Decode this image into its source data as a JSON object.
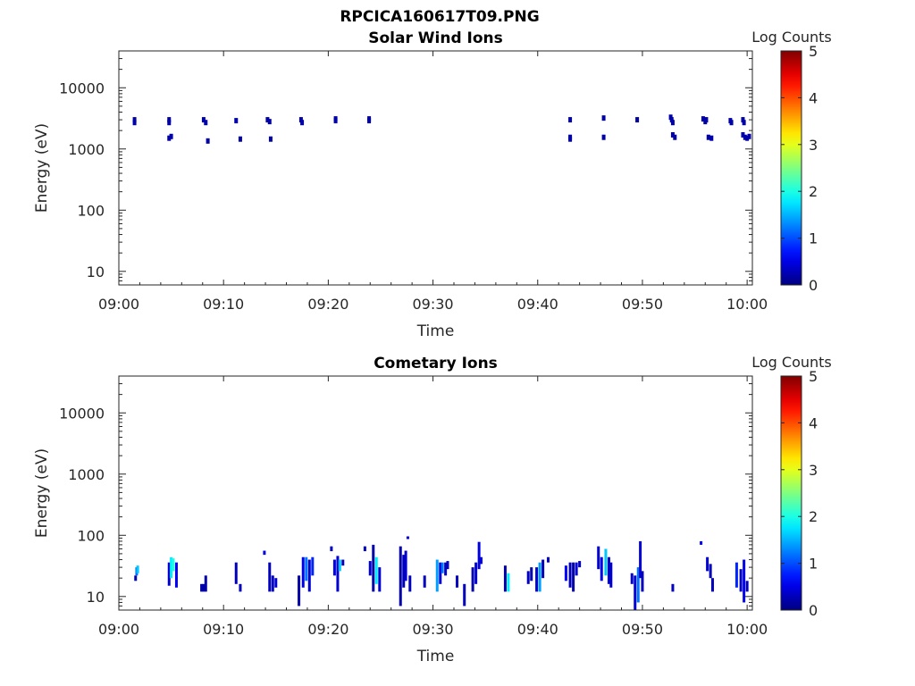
{
  "figure": {
    "title": "RPCICA160617T09.PNG"
  },
  "chart_data": [
    {
      "type": "heatmap",
      "title": "Solar Wind Ions",
      "xlabel": "Time",
      "ylabel": "Energy (eV)",
      "x_ticks": [
        "09:00",
        "09:10",
        "09:20",
        "09:30",
        "09:40",
        "09:50",
        "10:00"
      ],
      "xlim": [
        0,
        60.5
      ],
      "y_scale": "log",
      "y_ticks": [
        "10",
        "100",
        "1000",
        "10000"
      ],
      "ylim": [
        6,
        40000
      ],
      "colorbar": {
        "label": "Log Counts",
        "ticks": [
          "0",
          "1",
          "2",
          "3",
          "4",
          "5"
        ],
        "range": [
          0,
          5
        ],
        "colormap": "jet"
      },
      "x_unit": "minutes after 09:00",
      "cells": [
        [
          1.5,
          3000,
          0.2
        ],
        [
          1.5,
          2700,
          0.2
        ],
        [
          4.8,
          3000,
          0.2
        ],
        [
          4.8,
          2700,
          0.2
        ],
        [
          5.0,
          1600,
          0.2
        ],
        [
          4.8,
          1500,
          0.2
        ],
        [
          8.1,
          3000,
          0.2
        ],
        [
          8.3,
          2700,
          0.2
        ],
        [
          8.5,
          1350,
          0.2
        ],
        [
          11.2,
          2900,
          0.2
        ],
        [
          11.6,
          1450,
          0.2
        ],
        [
          14.2,
          3000,
          0.2
        ],
        [
          14.4,
          2800,
          0.2
        ],
        [
          14.5,
          1450,
          0.2
        ],
        [
          17.4,
          3000,
          0.2
        ],
        [
          17.5,
          2700,
          0.2
        ],
        [
          20.7,
          3100,
          0.2
        ],
        [
          20.7,
          2900,
          0.2
        ],
        [
          23.9,
          3100,
          0.2
        ],
        [
          23.9,
          2900,
          0.2
        ],
        [
          43.1,
          3000,
          0.2
        ],
        [
          43.1,
          1550,
          0.2
        ],
        [
          43.1,
          1450,
          0.2
        ],
        [
          46.3,
          3200,
          0.2
        ],
        [
          46.3,
          1550,
          0.2
        ],
        [
          49.5,
          3000,
          0.2
        ],
        [
          52.7,
          3300,
          0.2
        ],
        [
          52.8,
          3000,
          0.2
        ],
        [
          52.9,
          2700,
          0.2
        ],
        [
          52.9,
          1700,
          0.2
        ],
        [
          53.1,
          1550,
          0.2
        ],
        [
          55.8,
          3100,
          0.2
        ],
        [
          56.0,
          2800,
          0.2
        ],
        [
          56.1,
          3000,
          0.2
        ],
        [
          56.3,
          1550,
          0.2
        ],
        [
          56.6,
          1500,
          0.2
        ],
        [
          58.4,
          2900,
          0.2
        ],
        [
          58.5,
          2700,
          0.2
        ],
        [
          59.6,
          3000,
          0.2
        ],
        [
          59.7,
          2700,
          0.2
        ],
        [
          59.6,
          1700,
          0.2
        ],
        [
          59.8,
          1550,
          0.2
        ],
        [
          60.0,
          1500,
          0.2
        ],
        [
          60.2,
          1600,
          0.2
        ]
      ]
    },
    {
      "type": "heatmap",
      "title": "Cometary Ions",
      "xlabel": "Time",
      "ylabel": "Energy (eV)",
      "x_ticks": [
        "09:00",
        "09:10",
        "09:20",
        "09:30",
        "09:40",
        "09:50",
        "10:00"
      ],
      "xlim": [
        0,
        60.5
      ],
      "y_scale": "log",
      "y_ticks": [
        "10",
        "100",
        "1000",
        "10000"
      ],
      "ylim": [
        6,
        40000
      ],
      "colorbar": {
        "label": "Log Counts",
        "ticks": [
          "0",
          "1",
          "2",
          "3",
          "4",
          "5"
        ],
        "range": [
          0,
          5
        ],
        "colormap": "jet"
      },
      "x_unit": "minutes after 09:00",
      "columns": [
        [
          1.6,
          18,
          22,
          0.2
        ],
        [
          1.7,
          22,
          30,
          1.2
        ],
        [
          1.8,
          24,
          32,
          1.6
        ],
        [
          4.8,
          15,
          36,
          0.4
        ],
        [
          5.0,
          20,
          44,
          1.8
        ],
        [
          5.2,
          26,
          42,
          2.0
        ],
        [
          5.5,
          14,
          36,
          0.6
        ],
        [
          7.9,
          12,
          16,
          0.2
        ],
        [
          8.1,
          12,
          16,
          0.2
        ],
        [
          8.3,
          12,
          22,
          0.2
        ],
        [
          11.2,
          16,
          36,
          0.3
        ],
        [
          11.6,
          12,
          16,
          0.3
        ],
        [
          13.9,
          48,
          56,
          0.5
        ],
        [
          14.4,
          12,
          36,
          0.3
        ],
        [
          14.7,
          12,
          22,
          0.3
        ],
        [
          15.0,
          14,
          20,
          0.4
        ],
        [
          17.2,
          7,
          22,
          0.2
        ],
        [
          17.6,
          14,
          44,
          0.5
        ],
        [
          17.9,
          18,
          44,
          1.2
        ],
        [
          18.2,
          12,
          40,
          0.4
        ],
        [
          18.5,
          22,
          44,
          0.8
        ],
        [
          20.3,
          55,
          66,
          0.3
        ],
        [
          20.6,
          22,
          40,
          0.5
        ],
        [
          20.9,
          12,
          46,
          0.4
        ],
        [
          21.1,
          26,
          40,
          1.6
        ],
        [
          21.4,
          32,
          40,
          0.3
        ],
        [
          23.5,
          55,
          66,
          0.3
        ],
        [
          24.0,
          22,
          38,
          0.4
        ],
        [
          24.3,
          12,
          70,
          0.2
        ],
        [
          24.6,
          16,
          44,
          1.8
        ],
        [
          24.9,
          12,
          30,
          0.4
        ],
        [
          26.9,
          7,
          66,
          0.2
        ],
        [
          27.2,
          14,
          48,
          0.3
        ],
        [
          27.4,
          18,
          56,
          0.4
        ],
        [
          27.6,
          88,
          96,
          0.4
        ],
        [
          27.8,
          12,
          22,
          0.3
        ],
        [
          29.2,
          14,
          22,
          0.3
        ],
        [
          30.4,
          12,
          40,
          1.4
        ],
        [
          30.7,
          16,
          36,
          0.4
        ],
        [
          30.9,
          24,
          36,
          1.2
        ],
        [
          31.2,
          22,
          36,
          0.3
        ],
        [
          31.4,
          28,
          38,
          0.3
        ],
        [
          32.3,
          14,
          22,
          0.3
        ],
        [
          33.0,
          7,
          16,
          0.3
        ],
        [
          33.8,
          12,
          30,
          0.2
        ],
        [
          34.1,
          16,
          36,
          0.4
        ],
        [
          34.4,
          28,
          78,
          0.5
        ],
        [
          34.6,
          34,
          44,
          0.4
        ],
        [
          36.9,
          12,
          32,
          0.2
        ],
        [
          37.2,
          12,
          24,
          1.8
        ],
        [
          39.1,
          16,
          26,
          0.3
        ],
        [
          39.4,
          18,
          30,
          0.2
        ],
        [
          39.9,
          12,
          30,
          0.4
        ],
        [
          40.2,
          12,
          36,
          1.4
        ],
        [
          40.5,
          20,
          40,
          0.3
        ],
        [
          41.0,
          36,
          44,
          0.3
        ],
        [
          42.7,
          18,
          32,
          0.6
        ],
        [
          43.1,
          14,
          36,
          0.3
        ],
        [
          43.4,
          12,
          36,
          0.2
        ],
        [
          43.7,
          22,
          36,
          0.4
        ],
        [
          44.0,
          30,
          38,
          0.3
        ],
        [
          45.8,
          28,
          66,
          0.4
        ],
        [
          46.1,
          18,
          44,
          0.5
        ],
        [
          46.5,
          22,
          60,
          1.6
        ],
        [
          46.8,
          16,
          44,
          0.3
        ],
        [
          47.0,
          14,
          36,
          0.4
        ],
        [
          49.0,
          16,
          24,
          0.3
        ],
        [
          49.3,
          6,
          22,
          0.4
        ],
        [
          49.6,
          8,
          30,
          1.2
        ],
        [
          49.8,
          20,
          80,
          0.4
        ],
        [
          50.0,
          12,
          26,
          0.3
        ],
        [
          52.9,
          12,
          16,
          0.3
        ],
        [
          55.6,
          70,
          80,
          0.5
        ],
        [
          56.2,
          26,
          44,
          0.4
        ],
        [
          56.5,
          20,
          34,
          0.3
        ],
        [
          56.7,
          12,
          20,
          0.3
        ],
        [
          59.0,
          14,
          36,
          0.8
        ],
        [
          59.4,
          12,
          28,
          0.3
        ],
        [
          59.7,
          8,
          40,
          0.5
        ],
        [
          60.0,
          12,
          18,
          0.3
        ]
      ]
    }
  ]
}
